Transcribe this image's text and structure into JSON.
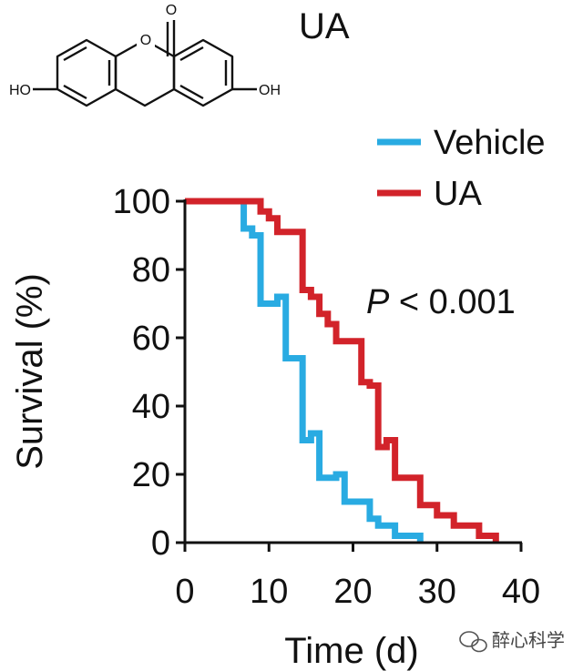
{
  "compound": {
    "name": "UA",
    "atoms": {
      "ring_oxygen": "O",
      "carbonyl_oxygen": "O",
      "left_oh": "HO",
      "right_oh": "OH"
    }
  },
  "annotation": {
    "p_symbol": "P",
    "p_rest": " < 0.001"
  },
  "watermark": {
    "text": "醉心科学"
  },
  "colors": {
    "vehicle": "#29abe2",
    "ua": "#d2232a",
    "axis": "#111111"
  },
  "chart_data": {
    "type": "line",
    "step": true,
    "xlabel": "Time (d)",
    "ylabel": "Survival (%)",
    "xlim": [
      0,
      40
    ],
    "ylim": [
      0,
      100
    ],
    "xticks": [
      0,
      10,
      20,
      30,
      40
    ],
    "yticks": [
      0,
      20,
      40,
      60,
      80,
      100
    ],
    "legend_position": "top-right",
    "series": [
      {
        "name": "Vehicle",
        "color": "#29abe2",
        "x": [
          0,
          7,
          8,
          9,
          11,
          12,
          14,
          15,
          16,
          18,
          19,
          22,
          23,
          25,
          26,
          28
        ],
        "y": [
          100,
          92,
          90,
          70,
          72,
          54,
          30,
          32,
          19,
          20,
          12,
          7,
          5,
          2,
          2,
          0
        ]
      },
      {
        "name": "UA",
        "color": "#d2232a",
        "x": [
          0,
          9,
          10,
          11,
          14,
          15,
          16,
          17,
          18,
          21,
          22,
          23,
          24,
          25,
          28,
          30,
          32,
          35,
          37
        ],
        "y": [
          100,
          97,
          95,
          91,
          74,
          72,
          67,
          64,
          59,
          47,
          46,
          28,
          30,
          19,
          11,
          8,
          5,
          2,
          0
        ]
      }
    ]
  }
}
